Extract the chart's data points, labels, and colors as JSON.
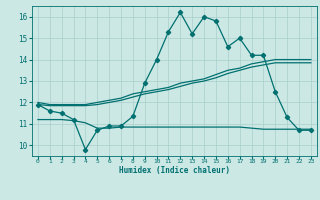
{
  "xlabel": "Humidex (Indice chaleur)",
  "background_color": "#cce8e4",
  "grid_color": "#aacfcc",
  "line_color": "#007070",
  "x_values": [
    0,
    1,
    2,
    3,
    4,
    5,
    6,
    7,
    8,
    9,
    10,
    11,
    12,
    13,
    14,
    15,
    16,
    17,
    18,
    19,
    20,
    21,
    22,
    23
  ],
  "y_main": [
    11.9,
    11.6,
    11.5,
    11.2,
    9.8,
    10.7,
    10.9,
    10.9,
    11.35,
    12.9,
    14.0,
    15.3,
    16.2,
    15.2,
    16.0,
    15.8,
    14.6,
    15.0,
    14.2,
    14.2,
    12.5,
    11.3,
    10.7,
    10.7
  ],
  "y_reg1": [
    12.0,
    11.9,
    11.9,
    11.9,
    11.9,
    12.0,
    12.1,
    12.2,
    12.4,
    12.5,
    12.6,
    12.7,
    12.9,
    13.0,
    13.1,
    13.3,
    13.5,
    13.6,
    13.8,
    13.9,
    14.0,
    14.0,
    14.0,
    14.0
  ],
  "y_reg2": [
    11.9,
    11.85,
    11.85,
    11.85,
    11.85,
    11.9,
    12.0,
    12.1,
    12.25,
    12.4,
    12.5,
    12.6,
    12.75,
    12.9,
    13.0,
    13.15,
    13.35,
    13.5,
    13.65,
    13.75,
    13.85,
    13.85,
    13.85,
    13.85
  ],
  "y_flat": [
    11.2,
    11.2,
    11.2,
    11.15,
    11.05,
    10.8,
    10.8,
    10.85,
    10.85,
    10.85,
    10.85,
    10.85,
    10.85,
    10.85,
    10.85,
    10.85,
    10.85,
    10.85,
    10.8,
    10.75,
    10.75,
    10.75,
    10.75,
    10.75
  ],
  "ylim": [
    9.5,
    16.5
  ],
  "yticks": [
    10,
    11,
    12,
    13,
    14,
    15,
    16
  ],
  "xlim": [
    -0.5,
    23.5
  ],
  "xticks": [
    0,
    1,
    2,
    3,
    4,
    5,
    6,
    7,
    8,
    9,
    10,
    11,
    12,
    13,
    14,
    15,
    16,
    17,
    18,
    19,
    20,
    21,
    22,
    23
  ]
}
